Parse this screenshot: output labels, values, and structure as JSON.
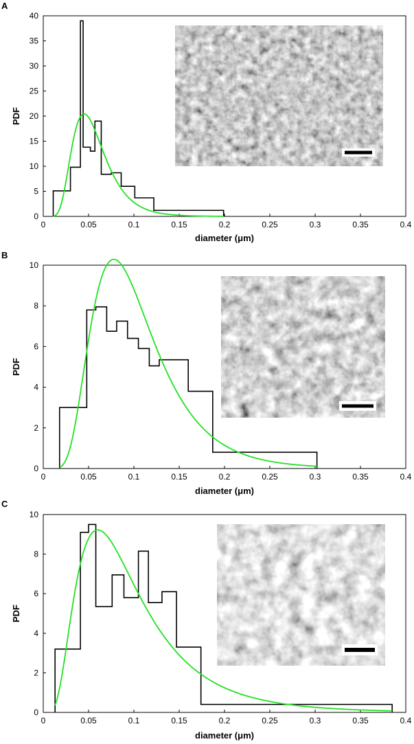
{
  "chart_data": [
    {
      "type": "histogram",
      "panel_label": "A",
      "xlabel": "diameter (μm)",
      "ylabel": "PDF",
      "xlim": [
        0,
        0.4
      ],
      "ylim": [
        0,
        40
      ],
      "xticks": [
        "0",
        "0.05",
        "0.1",
        "0.15",
        "0.2",
        "0.25",
        "0.3",
        "0.35",
        "0.4"
      ],
      "yticks": [
        "0",
        "5",
        "10",
        "15",
        "20",
        "25",
        "30",
        "35",
        "40"
      ],
      "histogram": {
        "edges": [
          0.011,
          0.03,
          0.041,
          0.044,
          0.052,
          0.057,
          0.064,
          0.075,
          0.086,
          0.101,
          0.122,
          0.199
        ],
        "values": [
          5.1,
          9.8,
          39.0,
          13.8,
          13.0,
          19.0,
          8.4,
          8.7,
          6.0,
          3.7,
          1.2
        ]
      },
      "fit": {
        "color": "#22e022",
        "mu": -2.94,
        "sigma": 0.4,
        "scale": 1.0
      },
      "inset": {
        "kind": "SEM micrograph with scale bar"
      }
    },
    {
      "type": "histogram",
      "panel_label": "B",
      "xlabel": "diameter (μm)",
      "ylabel": "PDF",
      "xlim": [
        0,
        0.4
      ],
      "ylim": [
        0,
        10
      ],
      "xticks": [
        "0",
        "0.05",
        "0.1",
        "0.15",
        "0.2",
        "0.25",
        "0.3",
        "0.35",
        "0.4"
      ],
      "yticks": [
        "0",
        "2",
        "4",
        "6",
        "8",
        "10"
      ],
      "histogram": {
        "edges": [
          0.018,
          0.048,
          0.058,
          0.07,
          0.081,
          0.093,
          0.105,
          0.117,
          0.128,
          0.142,
          0.16,
          0.187,
          0.302
        ],
        "values": [
          3.0,
          7.8,
          7.95,
          6.75,
          7.25,
          6.4,
          5.9,
          5.05,
          5.35,
          5.35,
          3.8,
          0.8
        ]
      },
      "fit": {
        "color": "#22e022",
        "mu": -2.35,
        "sigma": 0.45,
        "scale": 1.0
      },
      "inset": {
        "kind": "SEM micrograph with scale bar"
      }
    },
    {
      "type": "histogram",
      "panel_label": "C",
      "xlabel": "diameter (μm)",
      "ylabel": "PDF",
      "xlim": [
        0,
        0.4
      ],
      "ylim": [
        0,
        10
      ],
      "xticks": [
        "0",
        "0.05",
        "0.1",
        "0.15",
        "0.2",
        "0.25",
        "0.3",
        "0.35",
        "0.4"
      ],
      "yticks": [
        "0",
        "2",
        "4",
        "6",
        "8",
        "10"
      ],
      "histogram": {
        "edges": [
          0.013,
          0.041,
          0.05,
          0.058,
          0.076,
          0.089,
          0.105,
          0.116,
          0.131,
          0.147,
          0.174,
          0.385
        ],
        "values": [
          3.2,
          9.1,
          9.5,
          5.35,
          6.95,
          5.8,
          8.15,
          5.55,
          6.1,
          3.3,
          0.4
        ]
      },
      "fit": {
        "color": "#22e022",
        "mu": -2.45,
        "sigma": 0.6,
        "scale": 1.0
      },
      "inset": {
        "kind": "SEM micrograph with scale bar"
      }
    }
  ]
}
